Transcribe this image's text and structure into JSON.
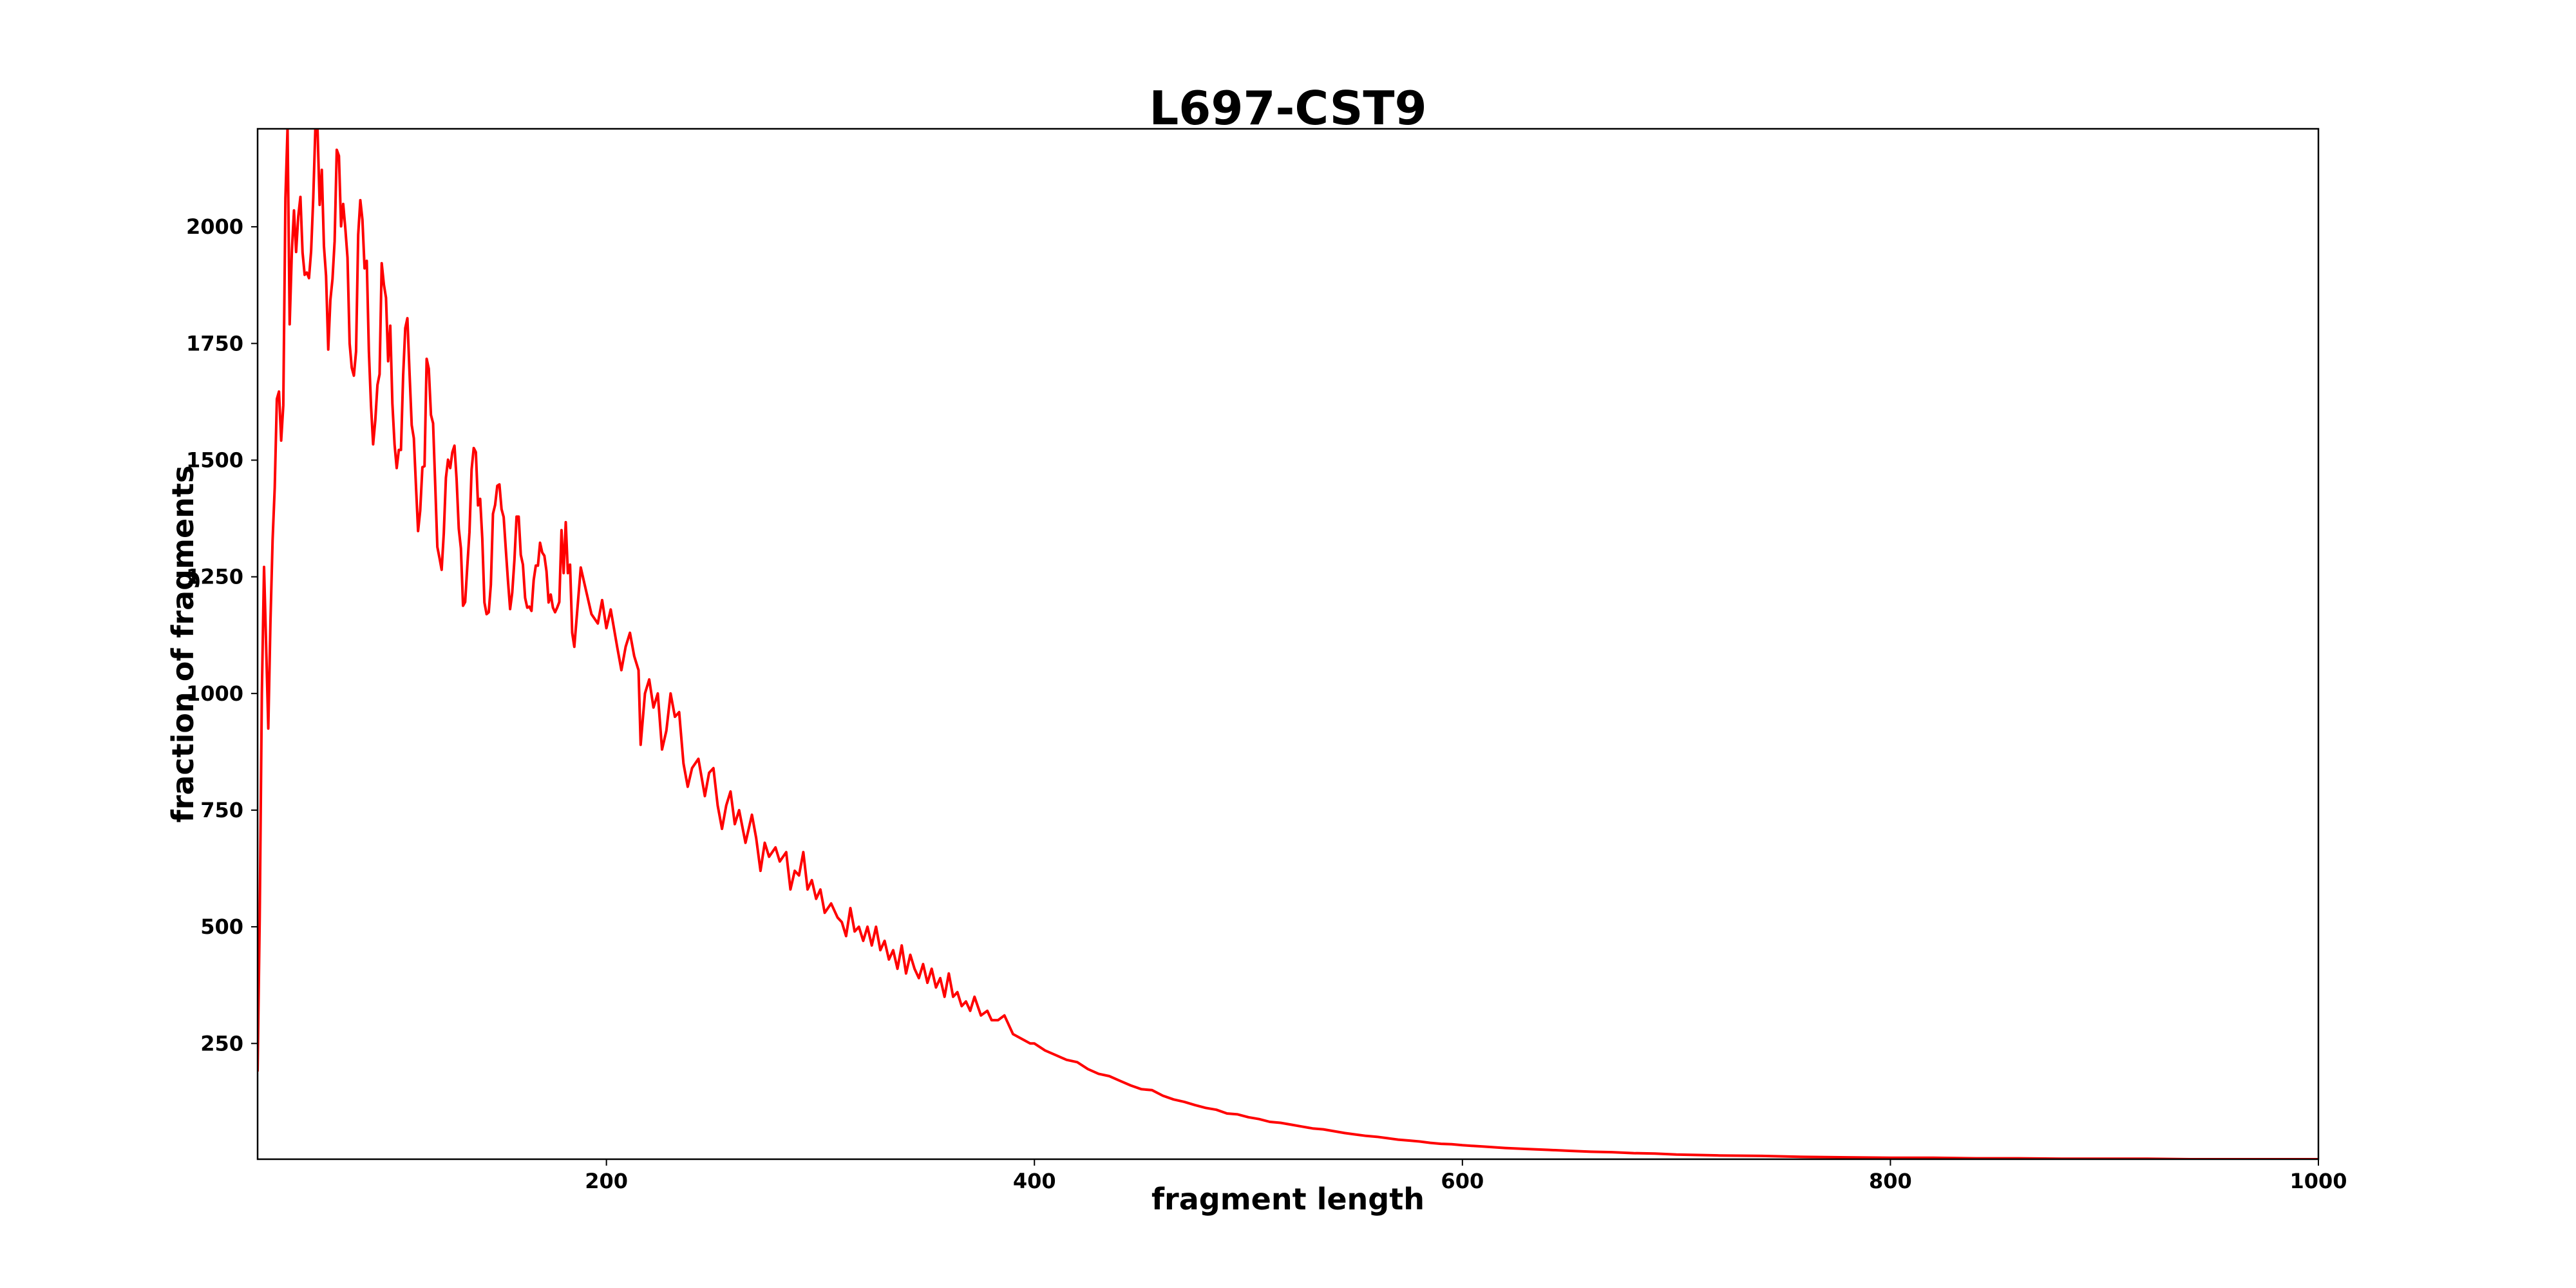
{
  "chart_data": {
    "type": "line",
    "title": "L697-CST9",
    "xlabel": "fragment length",
    "ylabel": "fraction of fragments",
    "xlim": [
      37,
      1000
    ],
    "ylim": [
      2,
      2210
    ],
    "xticks": [
      200,
      400,
      600,
      800,
      1000
    ],
    "yticks": [
      250,
      500,
      750,
      1000,
      1250,
      1500,
      1750,
      2000
    ],
    "grid": false,
    "series": [
      {
        "name": "L697-CST9",
        "color": "#ff0000",
        "x": [
          37,
          38,
          39,
          40,
          41,
          42,
          43,
          44,
          45,
          46,
          47,
          48,
          49,
          50,
          51,
          52,
          53,
          54,
          55,
          56,
          57,
          58,
          59,
          60,
          61,
          62,
          63,
          64,
          65,
          66,
          67,
          68,
          69,
          70,
          71,
          72,
          73,
          74,
          75,
          76,
          77,
          78,
          79,
          80,
          81,
          82,
          83,
          84,
          85,
          86,
          87,
          88,
          89,
          90,
          91,
          92,
          93,
          94,
          95,
          96,
          97,
          98,
          99,
          100,
          101,
          102,
          103,
          104,
          105,
          106,
          107,
          108,
          109,
          110,
          111,
          112,
          113,
          114,
          115,
          116,
          117,
          118,
          119,
          120,
          121,
          122,
          123,
          124,
          125,
          126,
          127,
          128,
          129,
          130,
          131,
          132,
          133,
          134,
          135,
          136,
          137,
          138,
          139,
          140,
          141,
          142,
          143,
          144,
          145,
          146,
          147,
          148,
          149,
          150,
          151,
          152,
          153,
          154,
          155,
          156,
          157,
          158,
          159,
          160,
          161,
          162,
          163,
          164,
          165,
          166,
          167,
          168,
          169,
          170,
          171,
          172,
          173,
          174,
          175,
          176,
          177,
          178,
          179,
          180,
          181,
          182,
          183,
          184,
          185,
          188,
          190,
          193,
          196,
          198,
          200,
          202,
          205,
          207,
          209,
          211,
          213,
          215,
          216,
          218,
          220,
          222,
          224,
          226,
          228,
          230,
          232,
          234,
          236,
          238,
          240,
          243,
          246,
          248,
          250,
          252,
          254,
          256,
          258,
          260,
          262,
          265,
          268,
          270,
          272,
          274,
          276,
          279,
          281,
          284,
          286,
          288,
          290,
          292,
          294,
          296,
          298,
          300,
          302,
          305,
          308,
          310,
          312,
          314,
          316,
          318,
          320,
          322,
          324,
          326,
          328,
          330,
          332,
          334,
          336,
          338,
          340,
          342,
          344,
          346,
          348,
          350,
          352,
          354,
          356,
          358,
          360,
          362,
          364,
          366,
          368,
          370,
          372,
          375,
          378,
          380,
          383,
          386,
          390,
          394,
          398,
          400,
          405,
          410,
          415,
          420,
          425,
          430,
          435,
          440,
          445,
          450,
          455,
          460,
          465,
          470,
          475,
          480,
          485,
          490,
          495,
          500,
          505,
          510,
          515,
          520,
          525,
          530,
          535,
          540,
          545,
          550,
          555,
          560,
          565,
          570,
          575,
          580,
          585,
          590,
          595,
          600,
          610,
          620,
          630,
          640,
          650,
          660,
          670,
          680,
          690,
          700,
          720,
          740,
          760,
          780,
          800,
          820,
          840,
          860,
          880,
          900,
          920,
          940,
          960,
          980,
          1000
        ],
        "y": [
          190,
          520,
          1000,
          1271,
          1100,
          925,
          1150,
          1329,
          1441,
          1631,
          1647,
          1542,
          1617,
          2061,
          2212,
          1791,
          1948,
          2035,
          1946,
          2022,
          2064,
          1945,
          1897,
          1902,
          1890,
          1948,
          2061,
          2212,
          2212,
          2047,
          2122,
          1959,
          1895,
          1737,
          1843,
          1888,
          1969,
          2165,
          2152,
          2001,
          2049,
          1997,
          1934,
          1750,
          1698,
          1681,
          1733,
          1983,
          2057,
          2015,
          1911,
          1927,
          1733,
          1617,
          1534,
          1586,
          1661,
          1684,
          1922,
          1876,
          1848,
          1712,
          1788,
          1621,
          1533,
          1483,
          1522,
          1522,
          1681,
          1783,
          1804,
          1688,
          1575,
          1547,
          1445,
          1348,
          1392,
          1485,
          1487,
          1717,
          1696,
          1597,
          1579,
          1448,
          1314,
          1290,
          1265,
          1343,
          1462,
          1501,
          1483,
          1517,
          1531,
          1459,
          1353,
          1311,
          1188,
          1196,
          1272,
          1346,
          1480,
          1526,
          1517,
          1403,
          1417,
          1332,
          1195,
          1170,
          1174,
          1233,
          1385,
          1404,
          1445,
          1448,
          1395,
          1378,
          1307,
          1241,
          1181,
          1216,
          1286,
          1379,
          1379,
          1297,
          1276,
          1205,
          1184,
          1186,
          1177,
          1243,
          1274,
          1274,
          1323,
          1302,
          1295,
          1262,
          1195,
          1212,
          1184,
          1174,
          1184,
          1196,
          1350,
          1258,
          1367,
          1258,
          1276,
          1130,
          1100,
          1270,
          1230,
          1170,
          1150,
          1200,
          1140,
          1180,
          1100,
          1050,
          1100,
          1130,
          1080,
          1050,
          890,
          1000,
          1030,
          970,
          1000,
          880,
          920,
          1000,
          950,
          960,
          850,
          800,
          840,
          860,
          780,
          830,
          840,
          760,
          710,
          760,
          790,
          720,
          750,
          680,
          740,
          690,
          620,
          680,
          650,
          670,
          640,
          660,
          580,
          620,
          610,
          660,
          580,
          600,
          560,
          580,
          530,
          550,
          520,
          510,
          480,
          540,
          490,
          500,
          470,
          500,
          460,
          500,
          450,
          470,
          430,
          450,
          410,
          460,
          400,
          440,
          410,
          390,
          420,
          380,
          410,
          370,
          390,
          350,
          400,
          350,
          360,
          330,
          340,
          320,
          350,
          310,
          320,
          300,
          300,
          310,
          270,
          260,
          250,
          250,
          235,
          225,
          215,
          210,
          195,
          185,
          180,
          170,
          160,
          152,
          150,
          138,
          130,
          125,
          118,
          112,
          108,
          100,
          98,
          92,
          88,
          82,
          80,
          76,
          72,
          68,
          66,
          62,
          58,
          55,
          52,
          50,
          47,
          44,
          42,
          40,
          37,
          35,
          34,
          32,
          29,
          26,
          24,
          22,
          20,
          18,
          17,
          15,
          14,
          12,
          10,
          9,
          7,
          6,
          5,
          5,
          4,
          4,
          3,
          3,
          3,
          2,
          2,
          2,
          2
        ]
      }
    ]
  }
}
